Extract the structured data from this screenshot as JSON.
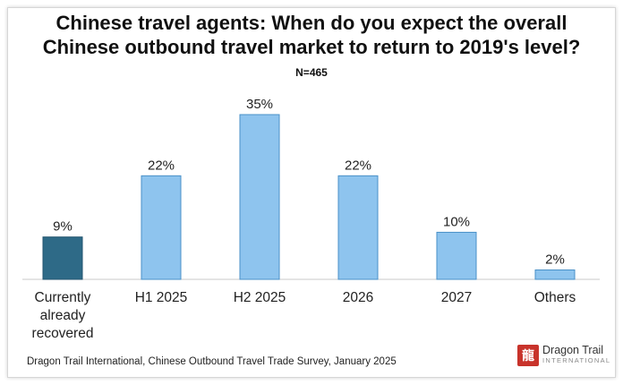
{
  "chart_data": {
    "type": "bar",
    "title": "Chinese travel agents: When do you expect the overall Chinese outbound travel market to return to 2019's level?",
    "title_lines": [
      "Chinese travel agents: When do you expect the overall",
      "Chinese outbound travel market to return to 2019's level?"
    ],
    "subtitle": "N=465",
    "categories": [
      [
        "Currently",
        "already",
        "recovered"
      ],
      [
        "H1 2025"
      ],
      [
        "H2 2025"
      ],
      [
        "2026"
      ],
      [
        "2027"
      ],
      [
        "Others"
      ]
    ],
    "values": [
      9,
      22,
      35,
      22,
      10,
      2
    ],
    "value_labels": [
      "9%",
      "22%",
      "35%",
      "22%",
      "10%",
      "2%"
    ],
    "ylim": [
      0,
      35
    ],
    "grid": false,
    "colors": [
      "#2e6a87",
      "#8ec4ee",
      "#8ec4ee",
      "#8ec4ee",
      "#8ec4ee",
      "#8ec4ee"
    ],
    "bar_edge_color": "#4a90c8"
  },
  "footer": {
    "source": "Dragon Trail International, Chinese Outbound Travel Trade Survey, January 2025"
  },
  "logo": {
    "name": "Dragon Trail",
    "sub": "INTERNATIONAL"
  }
}
